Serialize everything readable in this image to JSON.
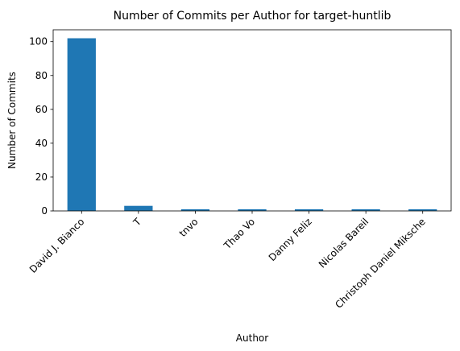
{
  "chart_data": {
    "type": "bar",
    "title": "Number of Commits per Author for target-huntlib",
    "xlabel": "Author",
    "ylabel": "Number of Commits",
    "categories": [
      "David J. Bianco",
      "T",
      "tnvo",
      "Thao Vo",
      "Danny Feliz",
      "Nicolas Bareil",
      "Christoph Daniel Miksche"
    ],
    "values": [
      102,
      3,
      1,
      1,
      1,
      1,
      1
    ],
    "ylim": [
      0,
      107
    ],
    "yticks": [
      0,
      20,
      40,
      60,
      80,
      100
    ],
    "grid": false,
    "legend": "none",
    "bar_color": "#1f77b4"
  }
}
